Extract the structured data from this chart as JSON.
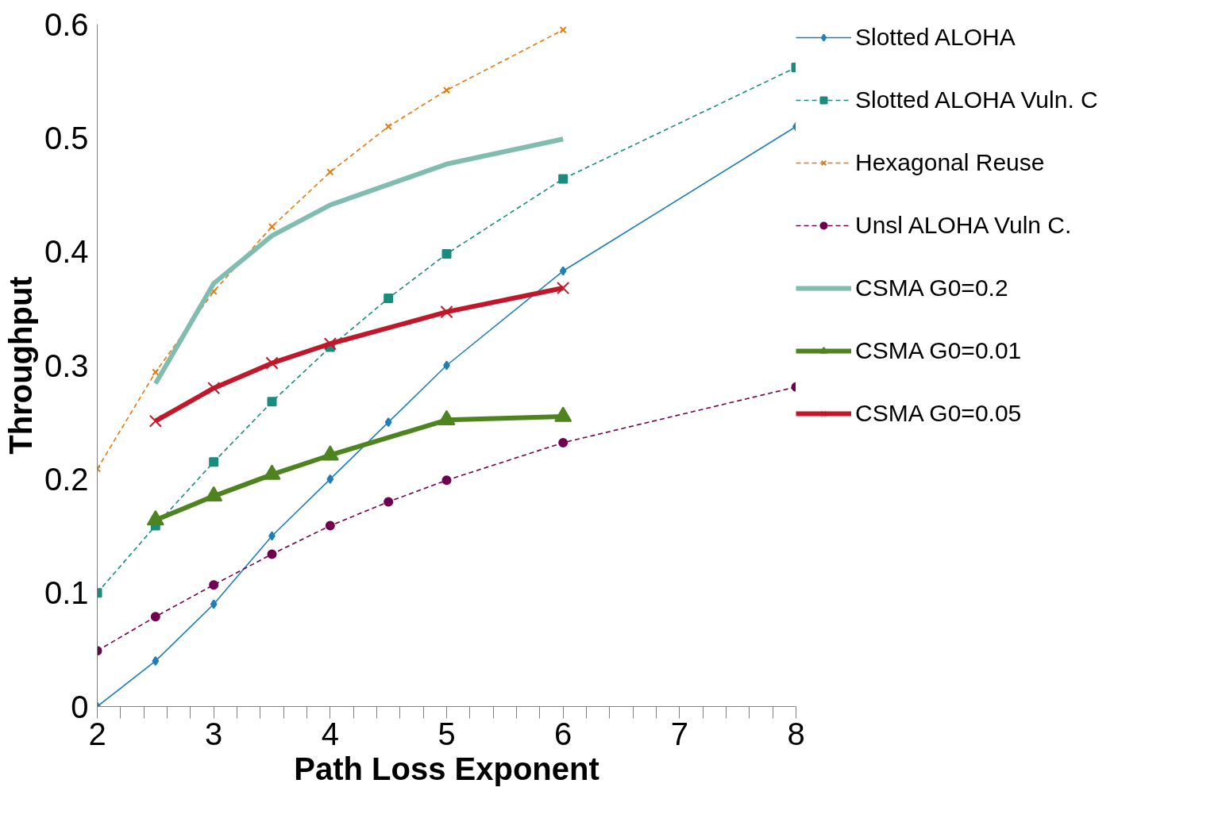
{
  "chart_data": {
    "type": "line",
    "xlabel": "Path Loss Exponent",
    "ylabel": "Throughput",
    "xlim": [
      2,
      8
    ],
    "ylim": [
      0,
      0.6
    ],
    "xticks": [
      2,
      {
        "value": 2.2,
        "label": null
      },
      {
        "value": 2.4,
        "label": null
      },
      {
        "value": 2.6,
        "label": null
      },
      {
        "value": 2.8,
        "label": null
      },
      3,
      {
        "value": 3.2,
        "label": null
      },
      {
        "value": 3.4,
        "label": null
      },
      {
        "value": 3.6,
        "label": null
      },
      {
        "value": 3.8,
        "label": null
      },
      4,
      {
        "value": 4.2,
        "label": null
      },
      {
        "value": 4.4,
        "label": null
      },
      {
        "value": 4.6,
        "label": null
      },
      {
        "value": 4.8,
        "label": null
      },
      5,
      {
        "value": 5.2,
        "label": null
      },
      {
        "value": 5.4,
        "label": null
      },
      {
        "value": 5.6,
        "label": null
      },
      {
        "value": 5.8,
        "label": null
      },
      6,
      {
        "value": 6.2,
        "label": null
      },
      {
        "value": 6.4,
        "label": null
      },
      {
        "value": 6.6,
        "label": null
      },
      {
        "value": 6.8,
        "label": null
      },
      7,
      {
        "value": 7.2,
        "label": null
      },
      {
        "value": 7.4,
        "label": null
      },
      {
        "value": 7.6,
        "label": null
      },
      {
        "value": 7.8,
        "label": null
      },
      8
    ],
    "yticks": [
      0,
      0.1,
      0.2,
      0.3,
      0.4,
      0.5,
      0.6
    ],
    "grid": false,
    "legend": "right",
    "series": [
      {
        "name": "Slotted ALOHA",
        "color": "#1f7fb8",
        "marker": "diamond",
        "line_style": "solid",
        "x": [
          2,
          2.5,
          3,
          3.5,
          4,
          4.5,
          5,
          6,
          8
        ],
        "values": [
          0,
          0.04,
          0.09,
          0.15,
          0.2,
          0.25,
          0.3,
          0.383,
          0.51
        ]
      },
      {
        "name": "Slotted ALOHA Vuln. C",
        "color": "#1a8c7e",
        "marker": "square",
        "line_style": "dashed",
        "x": [
          2,
          2.5,
          3,
          3.5,
          4,
          4.5,
          5,
          6,
          8
        ],
        "values": [
          0.1,
          0.159,
          0.215,
          0.268,
          0.316,
          0.359,
          0.398,
          0.464,
          0.562
        ]
      },
      {
        "name": "Hexagonal Reuse",
        "color": "#e07b10",
        "marker": "cross",
        "line_style": "dashed",
        "x": [
          2,
          2.5,
          3,
          3.5,
          4,
          4.5,
          5,
          6
        ],
        "values": [
          0.209,
          0.294,
          0.365,
          0.422,
          0.47,
          0.51,
          0.542,
          0.595
        ]
      },
      {
        "name": "Unsl ALOHA Vuln C.",
        "color": "#700050",
        "marker": "circle",
        "line_style": "dashed",
        "x": [
          2,
          2.5,
          3,
          3.5,
          4,
          4.5,
          5,
          6,
          8
        ],
        "values": [
          0.049,
          0.079,
          0.107,
          0.134,
          0.159,
          0.18,
          0.199,
          0.232,
          0.281
        ]
      },
      {
        "name": "CSMA G0=0.2",
        "color": "#80bcb0",
        "marker": "none",
        "line_style": "solid",
        "x": [
          2.5,
          3,
          3.5,
          4,
          5,
          6
        ],
        "values": [
          0.284,
          0.372,
          0.414,
          0.441,
          0.477,
          0.499
        ]
      },
      {
        "name": "CSMA G0=0.01",
        "color": "#4e8420",
        "marker": "triangle",
        "line_style": "solid",
        "x": [
          2.5,
          3,
          3.5,
          4,
          5,
          6
        ],
        "values": [
          0.164,
          0.185,
          0.204,
          0.221,
          0.252,
          0.255
        ]
      },
      {
        "name": "CSMA G0=0.05",
        "color": "#c0182a",
        "marker": "cross",
        "line_style": "solid",
        "x": [
          2.5,
          3,
          3.5,
          4,
          5,
          6
        ],
        "values": [
          0.251,
          0.28,
          0.302,
          0.319,
          0.347,
          0.368
        ]
      }
    ]
  }
}
